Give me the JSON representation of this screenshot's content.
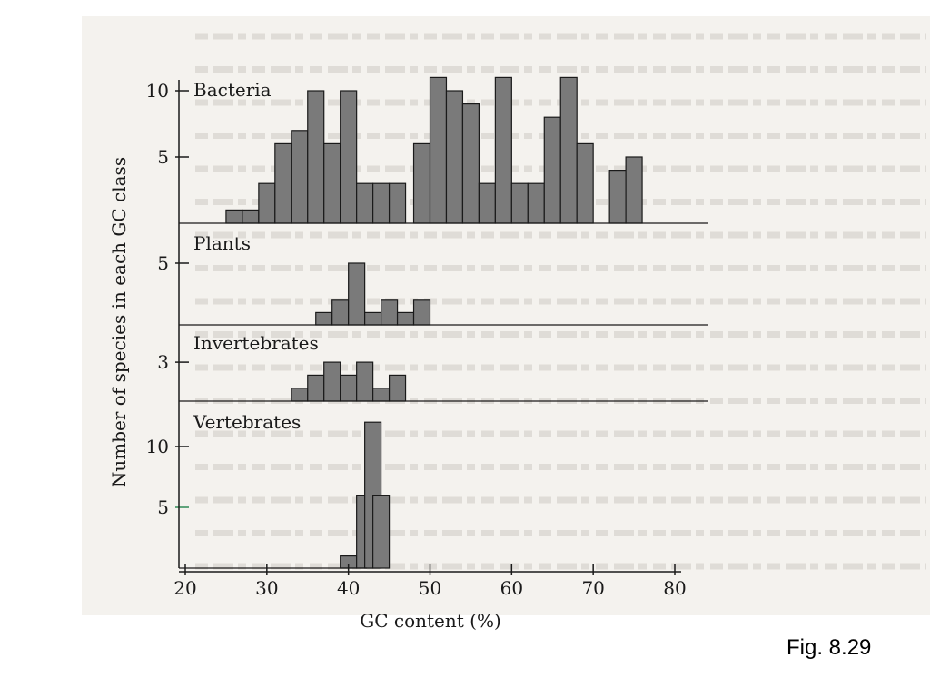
{
  "caption": "Fig. 8.29",
  "colors": {
    "bar_fill": "#7a7a7a",
    "bar_stroke": "#1a1a1a",
    "axis": "#1a1a1a",
    "tick_accent": "#2e8b57",
    "paper": "#f4f2ee",
    "bleed_text": "#b9b5ae"
  },
  "chart_data": {
    "type": "bar",
    "xlabel": "GC content (%)",
    "ylabel": "Number of species in each GC class",
    "xlim": [
      20,
      80
    ],
    "x_ticks": [
      20,
      30,
      40,
      50,
      60,
      70,
      80
    ],
    "bin_width": 2,
    "grid": false,
    "panels": [
      {
        "name": "Bacteria",
        "y_ticks": [
          5,
          10
        ],
        "bins": [
          {
            "start": 25,
            "value": 1
          },
          {
            "start": 27,
            "value": 1
          },
          {
            "start": 29,
            "value": 3
          },
          {
            "start": 31,
            "value": 6
          },
          {
            "start": 33,
            "value": 7
          },
          {
            "start": 35,
            "value": 10
          },
          {
            "start": 37,
            "value": 6
          },
          {
            "start": 39,
            "value": 10
          },
          {
            "start": 41,
            "value": 3
          },
          {
            "start": 43,
            "value": 3
          },
          {
            "start": 45,
            "value": 3
          },
          {
            "start": 48,
            "value": 6
          },
          {
            "start": 50,
            "value": 11
          },
          {
            "start": 52,
            "value": 10
          },
          {
            "start": 54,
            "value": 9
          },
          {
            "start": 56,
            "value": 3
          },
          {
            "start": 58,
            "value": 11
          },
          {
            "start": 60,
            "value": 3
          },
          {
            "start": 62,
            "value": 3
          },
          {
            "start": 64,
            "value": 8
          },
          {
            "start": 66,
            "value": 11
          },
          {
            "start": 68,
            "value": 6
          },
          {
            "start": 72,
            "value": 4
          },
          {
            "start": 74,
            "value": 5
          }
        ]
      },
      {
        "name": "Plants",
        "y_ticks": [
          5
        ],
        "bins": [
          {
            "start": 36,
            "value": 1
          },
          {
            "start": 38,
            "value": 2
          },
          {
            "start": 40,
            "value": 5
          },
          {
            "start": 42,
            "value": 1
          },
          {
            "start": 44,
            "value": 2
          },
          {
            "start": 46,
            "value": 1
          },
          {
            "start": 48,
            "value": 2
          }
        ]
      },
      {
        "name": "Invertebrates",
        "y_ticks": [
          3
        ],
        "bins": [
          {
            "start": 33,
            "value": 1
          },
          {
            "start": 35,
            "value": 2
          },
          {
            "start": 37,
            "value": 3
          },
          {
            "start": 39,
            "value": 2
          },
          {
            "start": 41,
            "value": 3
          },
          {
            "start": 43,
            "value": 1
          },
          {
            "start": 45,
            "value": 2
          }
        ]
      },
      {
        "name": "Vertebrates",
        "y_ticks": [
          5,
          10
        ],
        "bins": [
          {
            "start": 39,
            "value": 1
          },
          {
            "start": 41,
            "value": 6
          },
          {
            "start": 42,
            "value": 12
          },
          {
            "start": 43,
            "value": 6
          }
        ]
      }
    ]
  }
}
